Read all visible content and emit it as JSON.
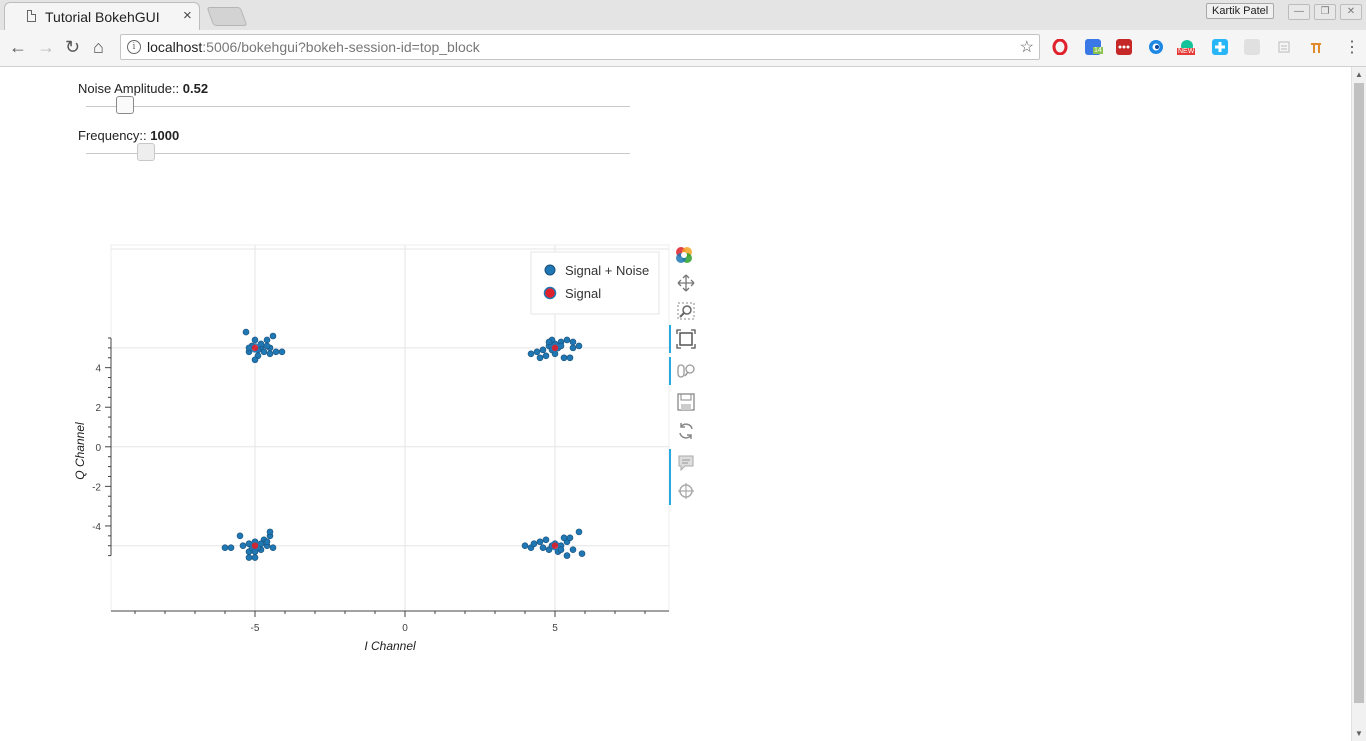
{
  "browser": {
    "tab_title": "Tutorial BokehGUI",
    "tab_close": "×",
    "profile_name": "Kartik Patel",
    "url_host": "localhost",
    "url_rest": ":5006/bokehgui?bokeh-session-id=top_block",
    "ext_badges": {
      "calendar": "14",
      "new": "NEW"
    }
  },
  "controls": {
    "noise": {
      "label": "Noise Amplitude:: ",
      "value": "0.52",
      "fraction": 0.055
    },
    "frequency": {
      "label": "Frequency:: ",
      "value": "1000",
      "fraction": 0.093
    }
  },
  "chart_data": {
    "type": "scatter",
    "xlabel": "I Channel",
    "ylabel": "Q Channel",
    "xlim": [
      -9.8,
      8.8
    ],
    "ylim": [
      -8.3,
      10.2
    ],
    "x_ticks": [
      -5,
      0,
      5
    ],
    "y_ticks": [
      -4,
      -2,
      0,
      2,
      4
    ],
    "grid_x": [
      -5,
      0,
      5
    ],
    "grid_y": [
      -5,
      0,
      5,
      10
    ],
    "legend_position": "top-right",
    "colors": {
      "noise": "#1f77b4",
      "signal": "#e0202a",
      "grid": "#e5e5e5",
      "axis": "#444444"
    },
    "series": [
      {
        "name": "Signal + Noise",
        "points": [
          [
            -5.3,
            5.8
          ],
          [
            -5.0,
            5.4
          ],
          [
            -4.6,
            5.4
          ],
          [
            -4.4,
            5.6
          ],
          [
            -5.1,
            5.1
          ],
          [
            -4.8,
            5.0
          ],
          [
            -4.5,
            5.0
          ],
          [
            -4.3,
            4.8
          ],
          [
            -4.1,
            4.8
          ],
          [
            -5.2,
            4.8
          ],
          [
            -4.9,
            4.6
          ],
          [
            -4.7,
            4.8
          ],
          [
            -5.0,
            4.4
          ],
          [
            -4.5,
            4.7
          ],
          [
            -4.8,
            5.2
          ],
          [
            -5.2,
            5.0
          ],
          [
            -4.9,
            4.9
          ],
          [
            -4.6,
            5.1
          ],
          [
            4.2,
            4.7
          ],
          [
            4.4,
            4.8
          ],
          [
            4.6,
            4.9
          ],
          [
            4.8,
            5.1
          ],
          [
            5.0,
            5.2
          ],
          [
            5.2,
            5.3
          ],
          [
            5.4,
            5.4
          ],
          [
            5.6,
            5.3
          ],
          [
            5.8,
            5.1
          ],
          [
            4.9,
            5.4
          ],
          [
            5.1,
            5.0
          ],
          [
            4.7,
            4.6
          ],
          [
            5.3,
            4.5
          ],
          [
            5.5,
            4.5
          ],
          [
            4.5,
            4.5
          ],
          [
            5.0,
            4.7
          ],
          [
            5.2,
            5.1
          ],
          [
            4.9,
            4.9
          ],
          [
            5.6,
            5.0
          ],
          [
            4.8,
            5.3
          ],
          [
            -5.5,
            -4.5
          ],
          [
            -5.8,
            -5.1
          ],
          [
            -6.0,
            -5.1
          ],
          [
            -5.2,
            -5.3
          ],
          [
            -5.0,
            -5.6
          ],
          [
            -4.8,
            -5.2
          ],
          [
            -4.6,
            -5.0
          ],
          [
            -4.5,
            -4.5
          ],
          [
            -4.4,
            -5.1
          ],
          [
            -5.2,
            -4.9
          ],
          [
            -5.0,
            -4.8
          ],
          [
            -4.7,
            -4.7
          ],
          [
            -5.1,
            -5.1
          ],
          [
            -4.9,
            -5.1
          ],
          [
            -5.2,
            -5.6
          ],
          [
            -5.0,
            -5.3
          ],
          [
            -4.6,
            -4.8
          ],
          [
            -4.5,
            -4.3
          ],
          [
            -5.4,
            -5.0
          ],
          [
            -4.8,
            -4.9
          ],
          [
            4.0,
            -5.0
          ],
          [
            4.2,
            -5.1
          ],
          [
            4.5,
            -4.8
          ],
          [
            4.6,
            -5.1
          ],
          [
            4.8,
            -5.2
          ],
          [
            5.0,
            -4.9
          ],
          [
            5.2,
            -5.0
          ],
          [
            5.4,
            -4.8
          ],
          [
            5.6,
            -5.2
          ],
          [
            5.8,
            -4.3
          ],
          [
            5.9,
            -5.4
          ],
          [
            5.4,
            -5.5
          ],
          [
            4.3,
            -4.9
          ],
          [
            5.1,
            -5.3
          ],
          [
            5.3,
            -4.6
          ],
          [
            4.7,
            -4.7
          ],
          [
            5.5,
            -4.6
          ],
          [
            4.9,
            -5.0
          ],
          [
            5.2,
            -5.2
          ]
        ]
      },
      {
        "name": "Signal",
        "points": [
          [
            -5,
            5
          ],
          [
            5,
            5
          ],
          [
            -5,
            -5
          ],
          [
            5,
            -5
          ]
        ]
      }
    ]
  }
}
